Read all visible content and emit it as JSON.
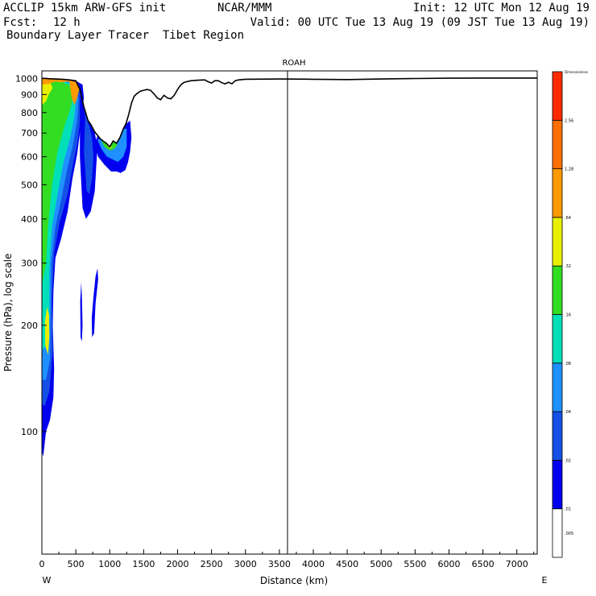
{
  "header": {
    "model": "ACCLIP 15km ARW-GFS init",
    "org": "NCAR/MMM",
    "init": "Init: 12 UTC Mon 12 Aug 19",
    "fcst_label": "Fcst:",
    "fcst_value": "12 h",
    "valid": "Valid: 00 UTC Tue 13 Aug 19 (09 JST Tue 13 Aug 19)",
    "product": "Boundary Layer Tracer  Tibet Region"
  },
  "chart_data": {
    "type": "heatmap",
    "title": "ROAH",
    "xlabel": "Distance (km)",
    "ylabel": "Pressure (hPa), log scale",
    "xlim": [
      0,
      7300
    ],
    "ylim_pressure_hpa": [
      1050,
      45
    ],
    "y_scale": "log",
    "x_ticks": [
      0,
      500,
      1000,
      1500,
      2000,
      2500,
      3000,
      3500,
      4000,
      4500,
      5000,
      5500,
      6000,
      6500,
      7000
    ],
    "y_ticks": [
      100,
      200,
      300,
      400,
      500,
      600,
      700,
      800,
      900,
      1000
    ],
    "x_end_labels": {
      "left": "W",
      "right": "E"
    },
    "marker_line_km": 3620,
    "colorbar": {
      "title": "Dimensionless",
      "labels": [
        ".005",
        ".01",
        ".02",
        ".04",
        ".08",
        ".16",
        ".32",
        ".64",
        "1.28",
        "2.56"
      ],
      "colors": [
        "#ffffff",
        "#0000ee",
        "#1450e6",
        "#1e90ff",
        "#00e0b8",
        "#33dd22",
        "#e8f000",
        "#ff9900",
        "#ff6e00",
        "#ff2a00"
      ]
    },
    "terrain": [
      [
        0,
        1000
      ],
      [
        50,
        1000
      ],
      [
        100,
        998
      ],
      [
        200,
        996
      ],
      [
        300,
        994
      ],
      [
        400,
        990
      ],
      [
        500,
        985
      ],
      [
        560,
        930
      ],
      [
        620,
        830
      ],
      [
        680,
        760
      ],
      [
        720,
        740
      ],
      [
        780,
        705
      ],
      [
        820,
        690
      ],
      [
        860,
        675
      ],
      [
        900,
        665
      ],
      [
        950,
        655
      ],
      [
        1000,
        640
      ],
      [
        1050,
        665
      ],
      [
        1100,
        655
      ],
      [
        1150,
        680
      ],
      [
        1200,
        720
      ],
      [
        1240,
        745
      ],
      [
        1280,
        790
      ],
      [
        1320,
        850
      ],
      [
        1360,
        890
      ],
      [
        1400,
        905
      ],
      [
        1450,
        920
      ],
      [
        1500,
        925
      ],
      [
        1550,
        930
      ],
      [
        1600,
        925
      ],
      [
        1650,
        905
      ],
      [
        1700,
        880
      ],
      [
        1750,
        870
      ],
      [
        1800,
        895
      ],
      [
        1850,
        880
      ],
      [
        1900,
        875
      ],
      [
        1950,
        895
      ],
      [
        2000,
        930
      ],
      [
        2050,
        960
      ],
      [
        2100,
        975
      ],
      [
        2200,
        985
      ],
      [
        2300,
        988
      ],
      [
        2400,
        990
      ],
      [
        2450,
        978
      ],
      [
        2500,
        970
      ],
      [
        2550,
        985
      ],
      [
        2600,
        985
      ],
      [
        2650,
        972
      ],
      [
        2700,
        965
      ],
      [
        2750,
        975
      ],
      [
        2800,
        965
      ],
      [
        2850,
        985
      ],
      [
        2900,
        990
      ],
      [
        3000,
        994
      ],
      [
        3500,
        996
      ],
      [
        4000,
        994
      ],
      [
        4500,
        992
      ],
      [
        5000,
        996
      ],
      [
        5500,
        999
      ],
      [
        6000,
        1001
      ],
      [
        6500,
        1002
      ],
      [
        7000,
        1002
      ],
      [
        7300,
        1002
      ]
    ],
    "tracer_regions": [
      {
        "level_index": 1,
        "points": [
          [
            0,
            990
          ],
          [
            0,
            88
          ],
          [
            20,
            85
          ],
          [
            60,
            100
          ],
          [
            120,
            108
          ],
          [
            170,
            125
          ],
          [
            180,
            150
          ],
          [
            160,
            200
          ],
          [
            170,
            250
          ],
          [
            200,
            310
          ],
          [
            280,
            350
          ],
          [
            380,
            420
          ],
          [
            450,
            520
          ],
          [
            520,
            610
          ],
          [
            560,
            700
          ],
          [
            590,
            800
          ],
          [
            620,
            880
          ],
          [
            600,
            960
          ],
          [
            500,
            985
          ],
          [
            300,
            994
          ],
          [
            100,
            998
          ]
        ]
      },
      {
        "level_index": 2,
        "points": [
          [
            0,
            985
          ],
          [
            0,
            120
          ],
          [
            40,
            118
          ],
          [
            110,
            130
          ],
          [
            160,
            170
          ],
          [
            150,
            240
          ],
          [
            180,
            320
          ],
          [
            260,
            390
          ],
          [
            380,
            470
          ],
          [
            450,
            560
          ],
          [
            520,
            650
          ],
          [
            560,
            750
          ],
          [
            580,
            880
          ],
          [
            540,
            965
          ],
          [
            400,
            988
          ],
          [
            200,
            994
          ]
        ]
      },
      {
        "level_index": 3,
        "points": [
          [
            0,
            980
          ],
          [
            0,
            140
          ],
          [
            60,
            140
          ],
          [
            120,
            160
          ],
          [
            130,
            220
          ],
          [
            140,
            300
          ],
          [
            200,
            380
          ],
          [
            300,
            470
          ],
          [
            380,
            560
          ],
          [
            460,
            650
          ],
          [
            520,
            760
          ],
          [
            540,
            870
          ],
          [
            500,
            960
          ],
          [
            350,
            986
          ],
          [
            150,
            992
          ]
        ]
      },
      {
        "level_index": 4,
        "points": [
          [
            0,
            975
          ],
          [
            0,
            170
          ],
          [
            70,
            175
          ],
          [
            110,
            210
          ],
          [
            110,
            290
          ],
          [
            150,
            380
          ],
          [
            240,
            480
          ],
          [
            320,
            580
          ],
          [
            420,
            680
          ],
          [
            480,
            780
          ],
          [
            500,
            880
          ],
          [
            470,
            955
          ],
          [
            300,
            984
          ],
          [
            120,
            990
          ]
        ]
      },
      {
        "level_index": 5,
        "points": [
          [
            0,
            970
          ],
          [
            0,
            260
          ],
          [
            60,
            300
          ],
          [
            90,
            380
          ],
          [
            150,
            500
          ],
          [
            230,
            620
          ],
          [
            330,
            730
          ],
          [
            420,
            820
          ],
          [
            460,
            890
          ],
          [
            430,
            950
          ],
          [
            280,
            980
          ],
          [
            100,
            988
          ]
        ]
      },
      {
        "level_index": 1,
        "points": [
          [
            560,
            600
          ],
          [
            600,
            430
          ],
          [
            650,
            400
          ],
          [
            720,
            420
          ],
          [
            780,
            480
          ],
          [
            800,
            560
          ],
          [
            820,
            640
          ],
          [
            780,
            700
          ],
          [
            720,
            740
          ],
          [
            650,
            780
          ],
          [
            600,
            850
          ],
          [
            560,
            900
          ]
        ]
      },
      {
        "level_index": 2,
        "points": [
          [
            620,
            620
          ],
          [
            660,
            480
          ],
          [
            700,
            470
          ],
          [
            740,
            520
          ],
          [
            760,
            600
          ],
          [
            740,
            680
          ],
          [
            700,
            730
          ],
          [
            640,
            790
          ]
        ]
      },
      {
        "level_index": 1,
        "points": [
          [
            570,
            185
          ],
          [
            590,
            180
          ],
          [
            600,
            200
          ],
          [
            590,
            240
          ],
          [
            580,
            265
          ],
          [
            565,
            235
          ]
        ]
      },
      {
        "level_index": 1,
        "points": [
          [
            740,
            185
          ],
          [
            770,
            190
          ],
          [
            790,
            230
          ],
          [
            830,
            270
          ],
          [
            820,
            290
          ],
          [
            790,
            275
          ],
          [
            760,
            240
          ],
          [
            735,
            210
          ]
        ]
      },
      {
        "level_index": 1,
        "points": [
          [
            780,
            650
          ],
          [
            830,
            600
          ],
          [
            920,
            570
          ],
          [
            1020,
            545
          ],
          [
            1100,
            545
          ],
          [
            1160,
            540
          ],
          [
            1230,
            550
          ],
          [
            1270,
            580
          ],
          [
            1300,
            620
          ],
          [
            1320,
            680
          ],
          [
            1300,
            760
          ],
          [
            1250,
            745
          ],
          [
            1200,
            720
          ],
          [
            1150,
            680
          ],
          [
            1100,
            655
          ],
          [
            1050,
            665
          ],
          [
            1000,
            640
          ],
          [
            950,
            655
          ],
          [
            900,
            665
          ],
          [
            860,
            675
          ],
          [
            820,
            690
          ]
        ]
      },
      {
        "level_index": 3,
        "points": [
          [
            820,
            670
          ],
          [
            880,
            630
          ],
          [
            960,
            600
          ],
          [
            1040,
            590
          ],
          [
            1120,
            580
          ],
          [
            1200,
            600
          ],
          [
            1250,
            640
          ],
          [
            1250,
            720
          ],
          [
            1200,
            720
          ],
          [
            1150,
            680
          ],
          [
            1100,
            655
          ],
          [
            1050,
            665
          ],
          [
            1000,
            640
          ],
          [
            950,
            655
          ],
          [
            900,
            665
          ],
          [
            860,
            675
          ]
        ]
      },
      {
        "level_index": 5,
        "points": [
          [
            880,
            665
          ],
          [
            920,
            640
          ],
          [
            1000,
            625
          ],
          [
            1060,
            630
          ],
          [
            1110,
            645
          ],
          [
            1100,
            655
          ],
          [
            1050,
            665
          ],
          [
            1000,
            640
          ],
          [
            950,
            655
          ]
        ]
      },
      {
        "level_index": 6,
        "points": [
          [
            950,
            650
          ],
          [
            1000,
            632
          ],
          [
            1040,
            640
          ],
          [
            1000,
            640
          ]
        ]
      },
      {
        "level_index": 6,
        "points": [
          [
            0,
            960
          ],
          [
            0,
            840
          ],
          [
            60,
            860
          ],
          [
            100,
            900
          ],
          [
            160,
            940
          ],
          [
            120,
            975
          ],
          [
            40,
            990
          ]
        ]
      },
      {
        "level_index": 7,
        "points": [
          [
            400,
            988
          ],
          [
            440,
            880
          ],
          [
            480,
            840
          ],
          [
            520,
            880
          ],
          [
            550,
            930
          ],
          [
            520,
            975
          ]
        ]
      },
      {
        "level_index": 7,
        "points": [
          [
            0,
            995
          ],
          [
            0,
            960
          ],
          [
            100,
            965
          ],
          [
            200,
            980
          ],
          [
            300,
            975
          ],
          [
            400,
            980
          ],
          [
            450,
            992
          ],
          [
            300,
            996
          ],
          [
            100,
            999
          ]
        ]
      },
      {
        "level_index": 6,
        "points": [
          [
            50,
            175
          ],
          [
            90,
            165
          ],
          [
            110,
            185
          ],
          [
            105,
            215
          ],
          [
            75,
            225
          ],
          [
            45,
            205
          ]
        ]
      }
    ]
  }
}
